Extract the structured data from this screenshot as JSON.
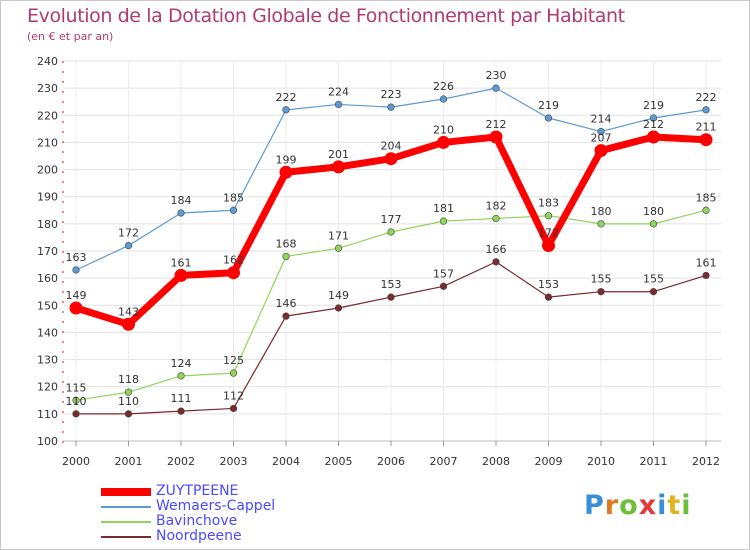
{
  "title": "Evolution de la Dotation Globale de Fonctionnement par Habitant",
  "subtitle": "(en € et par an)",
  "logo": {
    "text": "Proxiti",
    "letters": [
      {
        "ch": "P",
        "color": "#3a8fd6"
      },
      {
        "ch": "r",
        "color": "#e07a1f"
      },
      {
        "ch": "o",
        "color": "#6cbf3a"
      },
      {
        "ch": "x",
        "color": "#e03a3a"
      },
      {
        "ch": "i",
        "color": "#3a8fd6"
      },
      {
        "ch": "t",
        "color": "#e0b31f"
      },
      {
        "ch": "i",
        "color": "#6cbf3a"
      }
    ]
  },
  "chart_data": {
    "type": "line",
    "title": "Evolution de la Dotation Globale de Fonctionnement par Habitant",
    "subtitle": "(en € et par an)",
    "x": [
      "2000",
      "2001",
      "2002",
      "2003",
      "2004",
      "2005",
      "2006",
      "2007",
      "2008",
      "2009",
      "2010",
      "2011",
      "2012"
    ],
    "ylim": [
      100,
      240
    ],
    "yticks": [
      100,
      110,
      120,
      130,
      140,
      150,
      160,
      170,
      180,
      190,
      200,
      210,
      220,
      230,
      240
    ],
    "grid": true,
    "legend_position": "bottom-left",
    "series": [
      {
        "name": "ZUYTPEENE",
        "color": "#ff0000",
        "values": [
          149,
          143,
          161,
          162,
          199,
          201,
          204,
          210,
          212,
          172,
          207,
          212,
          211
        ]
      },
      {
        "name": "Wemaers-Cappel",
        "color": "#5b9bd5",
        "values": [
          163,
          172,
          184,
          185,
          222,
          224,
          223,
          226,
          230,
          219,
          214,
          219,
          222
        ]
      },
      {
        "name": "Bavinchove",
        "color": "#8ed65b",
        "values": [
          115,
          118,
          124,
          125,
          168,
          171,
          177,
          181,
          182,
          183,
          180,
          180,
          185
        ]
      },
      {
        "name": "Noordpeene",
        "color": "#7a2b2b",
        "values": [
          110,
          110,
          111,
          112,
          146,
          149,
          153,
          157,
          166,
          153,
          155,
          155,
          161
        ]
      }
    ]
  }
}
